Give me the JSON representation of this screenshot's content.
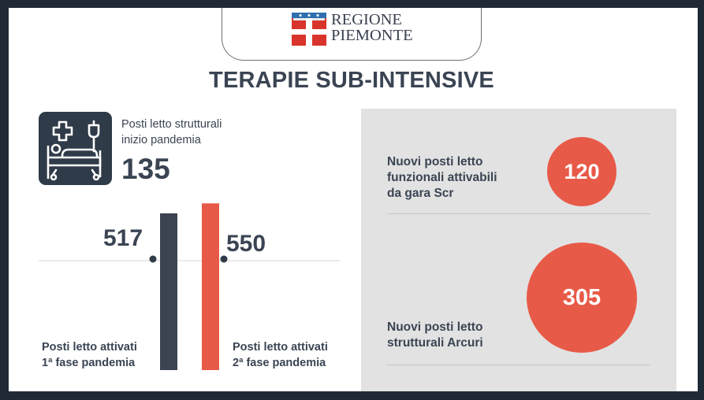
{
  "header": {
    "logo_line1": "REGIONE",
    "logo_line2": "PIEMONTE",
    "title": "TERAPIE SUB-INTENSIVE"
  },
  "structural": {
    "label_line1": "Posti letto strutturali",
    "label_line2": "inizio pandemia",
    "value": "135",
    "icon": "hospital-bed-icon"
  },
  "phases": [
    {
      "value": "517",
      "caption_line1": "Posti letto attivati",
      "caption_line2": "1ª fase pandemia",
      "color": "#3b4450"
    },
    {
      "value": "550",
      "caption_line1": "Posti letto attivati",
      "caption_line2": "2ª fase pandemia",
      "color": "#e85a48"
    }
  ],
  "panel": {
    "items": [
      {
        "label_lines": [
          "Nuovi posti letto",
          "funzionali attivabili",
          "da gara Scr"
        ],
        "value": "120"
      },
      {
        "label_lines": [
          "Nuovi posti letto",
          "strutturali Arcuri"
        ],
        "value": "305"
      }
    ]
  },
  "colors": {
    "accent": "#e85a48",
    "dark": "#3b4450",
    "panel_bg": "#e2e2e2"
  },
  "chart_data": {
    "type": "bar",
    "categories": [
      "Posti letto attivati 1ª fase pandemia",
      "Posti letto attivati 2ª fase pandemia"
    ],
    "values": [
      517,
      550
    ],
    "extra_values": [
      {
        "label": "Posti letto strutturali inizio pandemia",
        "value": 135
      },
      {
        "label": "Nuovi posti letto funzionali attivabili da gara Scr",
        "value": 120
      },
      {
        "label": "Nuovi posti letto strutturali Arcuri",
        "value": 305
      }
    ],
    "title": "TERAPIE SUB-INTENSIVE",
    "grid": false
  }
}
